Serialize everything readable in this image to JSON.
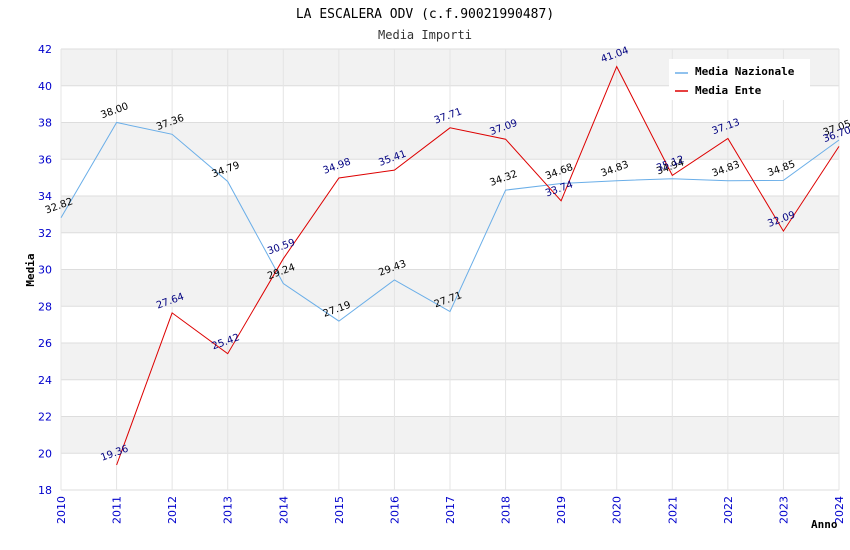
{
  "chart_data": {
    "type": "line",
    "title": "LA ESCALERA ODV (c.f.90021990487)",
    "subtitle": "Media Importi",
    "xlabel": "Anno",
    "ylabel": "Media",
    "x": [
      "2010",
      "2011",
      "2012",
      "2013",
      "2014",
      "2015",
      "2016",
      "2017",
      "2018",
      "2019",
      "2020",
      "2021",
      "2022",
      "2023",
      "2024"
    ],
    "ylim": [
      18,
      42
    ],
    "yticks": [
      18,
      20,
      22,
      24,
      26,
      28,
      30,
      32,
      34,
      36,
      38,
      40,
      42
    ],
    "grid": true,
    "legend_position": "top-right",
    "series": [
      {
        "name": "Media Nazionale",
        "color": "#6aaee8",
        "values": [
          32.82,
          38.0,
          37.36,
          34.79,
          29.24,
          27.19,
          29.43,
          27.71,
          34.32,
          34.68,
          34.83,
          34.94,
          34.83,
          34.85,
          37.05
        ],
        "labels": [
          "32.82",
          "38.00",
          "37.36",
          "34.79",
          "29.24",
          "27.19",
          "29.43",
          "27.71",
          "34.32",
          "34.68",
          "34.83",
          "34.94",
          "34.83",
          "34.85",
          "37.05"
        ]
      },
      {
        "name": "Media Ente",
        "color": "#dd0000",
        "values": [
          null,
          19.36,
          27.64,
          25.42,
          30.59,
          34.98,
          35.41,
          37.71,
          37.09,
          33.74,
          41.04,
          35.12,
          37.13,
          32.09,
          36.7
        ],
        "labels": [
          "",
          "19.36",
          "27.64",
          "25.42",
          "30.59",
          "34.98",
          "35.41",
          "37.71",
          "37.09",
          "33.74",
          "41.04",
          "35.12",
          "37.13",
          "32.09",
          "36.70"
        ]
      }
    ]
  }
}
